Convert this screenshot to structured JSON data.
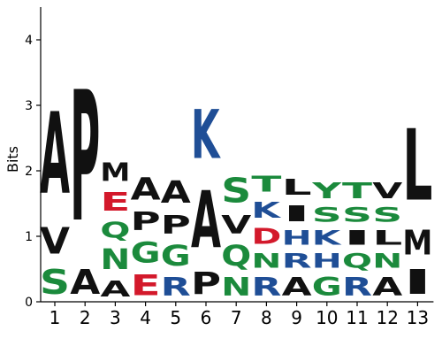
{
  "chart_data": {
    "type": "sequence-logo",
    "ylabel": "Bits",
    "ylim": [
      0,
      4.5
    ],
    "yticks": [
      0,
      1,
      2,
      3,
      4
    ],
    "colors": {
      "hydrophobic": "#111111",
      "polar": "#1b8a3c",
      "basic": "#1f4e96",
      "acidic": "#d3192b"
    },
    "residue_classes": {
      "A": "hydrophobic",
      "V": "hydrophobic",
      "P": "hydrophobic",
      "M": "hydrophobic",
      "L": "hydrophobic",
      "I": "hydrophobic",
      "Y": "polar",
      "T": "polar",
      "S": "polar",
      "G": "polar",
      "Q": "polar",
      "N": "polar",
      "K": "basic",
      "R": "basic",
      "H": "basic",
      "E": "acidic",
      "D": "acidic"
    },
    "positions": [
      {
        "label": "1",
        "stack": [
          {
            "letter": "S",
            "bits": 0.6
          },
          {
            "letter": "V",
            "bits": 0.65
          },
          {
            "letter": "A",
            "bits": 2.0
          }
        ]
      },
      {
        "label": "2",
        "stack": [
          {
            "letter": "A",
            "bits": 0.6
          },
          {
            "letter": "P",
            "bits": 3.2
          }
        ]
      },
      {
        "label": "3",
        "stack": [
          {
            "letter": "A",
            "bits": 0.4
          },
          {
            "letter": "N",
            "bits": 0.5
          },
          {
            "letter": "Q",
            "bits": 0.4
          },
          {
            "letter": "E",
            "bits": 0.45
          },
          {
            "letter": "M",
            "bits": 0.45
          }
        ]
      },
      {
        "label": "4",
        "stack": [
          {
            "letter": "E",
            "bits": 0.5
          },
          {
            "letter": "G",
            "bits": 0.5
          },
          {
            "letter": "P",
            "bits": 0.45
          },
          {
            "letter": "A",
            "bits": 0.55
          }
        ]
      },
      {
        "label": "5",
        "stack": [
          {
            "letter": "R",
            "bits": 0.45
          },
          {
            "letter": "G",
            "bits": 0.5
          },
          {
            "letter": "P",
            "bits": 0.45
          },
          {
            "letter": "A",
            "bits": 0.55
          }
        ]
      },
      {
        "label": "6",
        "stack": [
          {
            "letter": "P",
            "bits": 0.55
          },
          {
            "letter": "A",
            "bits": 1.4
          },
          {
            "letter": "K",
            "bits": 1.2
          }
        ]
      },
      {
        "label": "7",
        "stack": [
          {
            "letter": "N",
            "bits": 0.45
          },
          {
            "letter": "Q",
            "bits": 0.5
          },
          {
            "letter": "V",
            "bits": 0.45
          },
          {
            "letter": "S",
            "bits": 0.6
          }
        ]
      },
      {
        "label": "8",
        "stack": [
          {
            "letter": "R",
            "bits": 0.45
          },
          {
            "letter": "N",
            "bits": 0.35
          },
          {
            "letter": "D",
            "bits": 0.4
          },
          {
            "letter": "K",
            "bits": 0.4
          },
          {
            "letter": "T",
            "bits": 0.4
          }
        ]
      },
      {
        "label": "9",
        "stack": [
          {
            "letter": "A",
            "bits": 0.45
          },
          {
            "letter": "R",
            "bits": 0.35
          },
          {
            "letter": "H",
            "bits": 0.35
          },
          {
            "letter": "I",
            "bits": 0.4
          },
          {
            "letter": "L",
            "bits": 0.4
          }
        ]
      },
      {
        "label": "10",
        "stack": [
          {
            "letter": "G",
            "bits": 0.45
          },
          {
            "letter": "H",
            "bits": 0.35
          },
          {
            "letter": "K",
            "bits": 0.35
          },
          {
            "letter": "S",
            "bits": 0.35
          },
          {
            "letter": "Y",
            "bits": 0.4
          }
        ]
      },
      {
        "label": "11",
        "stack": [
          {
            "letter": "R",
            "bits": 0.45
          },
          {
            "letter": "Q",
            "bits": 0.35
          },
          {
            "letter": "I",
            "bits": 0.35
          },
          {
            "letter": "S",
            "bits": 0.35
          },
          {
            "letter": "T",
            "bits": 0.4
          }
        ]
      },
      {
        "label": "12",
        "stack": [
          {
            "letter": "A",
            "bits": 0.45
          },
          {
            "letter": "N",
            "bits": 0.35
          },
          {
            "letter": "L",
            "bits": 0.35
          },
          {
            "letter": "S",
            "bits": 0.35
          },
          {
            "letter": "V",
            "bits": 0.4
          }
        ]
      },
      {
        "label": "13",
        "stack": [
          {
            "letter": "I",
            "bits": 0.6
          },
          {
            "letter": "M",
            "bits": 0.6
          },
          {
            "letter": "L",
            "bits": 1.75
          }
        ]
      }
    ]
  }
}
